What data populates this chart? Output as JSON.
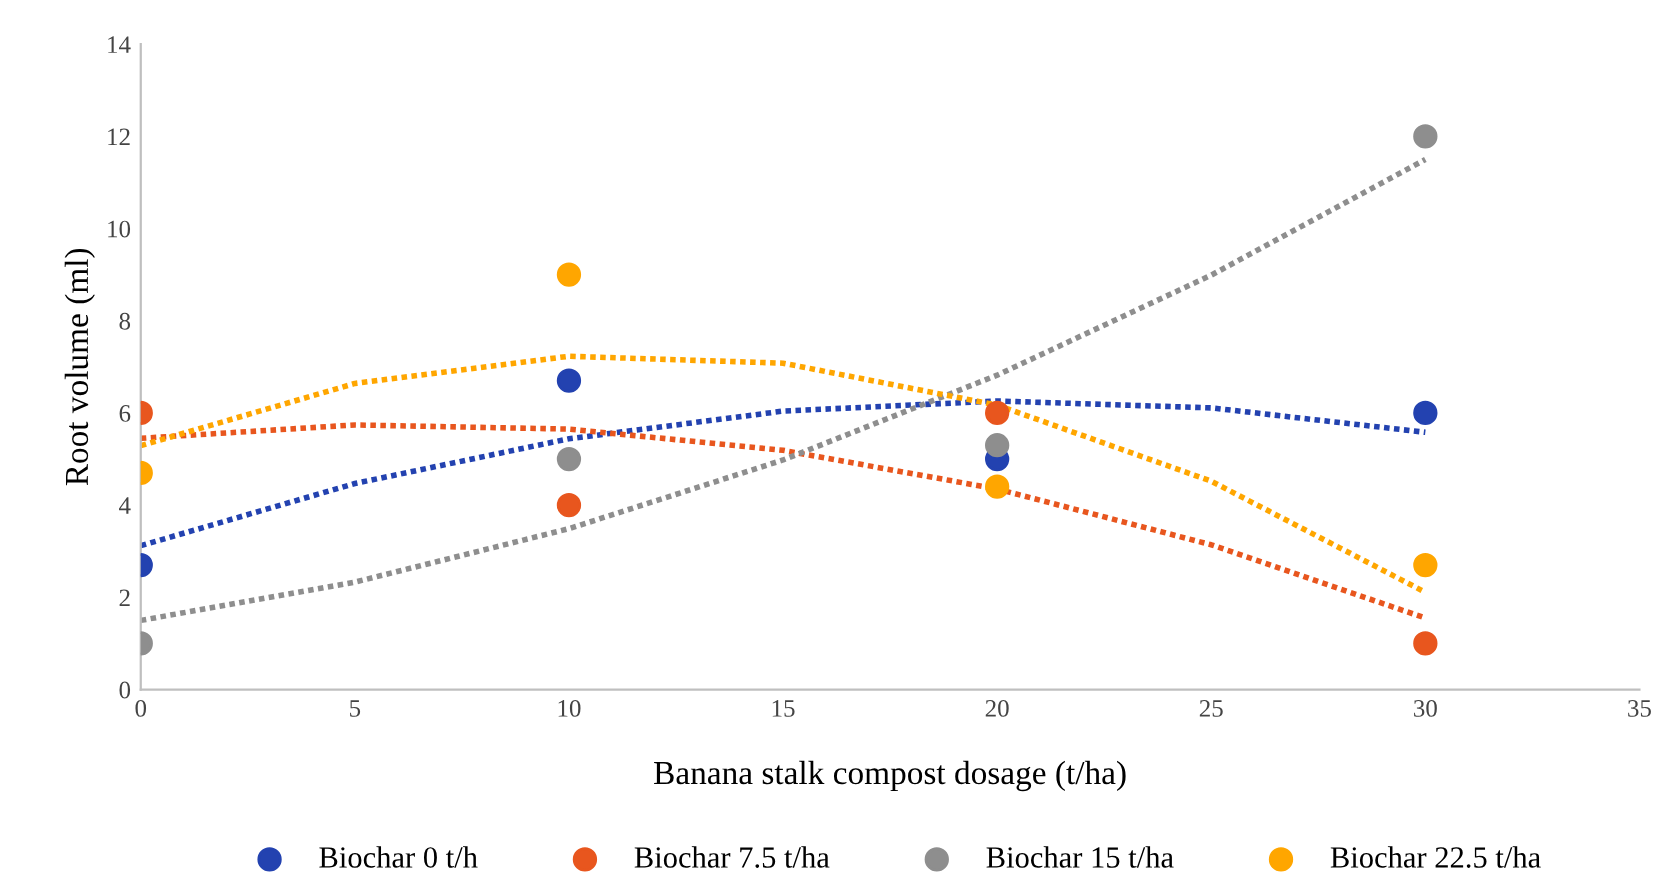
{
  "chart_data": {
    "type": "scatter",
    "xlabel": "Banana stalk compost dosage (t/ha)",
    "ylabel": "Root volume (ml)",
    "xlim": [
      0,
      35
    ],
    "ylim": [
      0,
      14
    ],
    "xticks": [
      0,
      5,
      10,
      15,
      20,
      25,
      30,
      35
    ],
    "yticks": [
      0,
      2,
      4,
      6,
      8,
      10,
      12,
      14
    ],
    "grid": false,
    "legend": "bottom",
    "series": [
      {
        "name": "Biochar 0 t/h",
        "color": "#2342b0",
        "x": [
          0,
          10,
          20,
          30
        ],
        "values": [
          2.7,
          6.7,
          5.0,
          6.0
        ],
        "marker": "circle"
      },
      {
        "name": "Biochar 7.5 t/ha",
        "color": "#e8561e",
        "x": [
          0,
          10,
          20,
          30
        ],
        "values": [
          6.0,
          4.0,
          6.0,
          1.0
        ],
        "marker": "circle"
      },
      {
        "name": "Biochar 15 t/ha",
        "color": "#8e8e8e",
        "x": [
          0,
          10,
          20,
          30
        ],
        "values": [
          1.0,
          5.0,
          5.3,
          12.0
        ],
        "marker": "circle"
      },
      {
        "name": "Biochar 22.5 t/ha",
        "color": "#ffa600",
        "x": [
          0,
          10,
          20,
          30
        ],
        "values": [
          4.7,
          9.0,
          4.4,
          2.7
        ],
        "marker": "circle"
      },
      {
        "type": "line",
        "line_style": "dotted",
        "color": "#2342b0",
        "x": [
          0,
          5,
          10,
          15,
          20,
          25,
          30
        ],
        "values": [
          3.12,
          4.47,
          5.44,
          6.04,
          6.26,
          6.11,
          5.58
        ]
      },
      {
        "type": "line",
        "line_style": "dotted",
        "color": "#e8561e",
        "x": [
          0,
          5,
          10,
          15,
          20,
          25,
          30
        ],
        "values": [
          5.45,
          5.74,
          5.65,
          5.19,
          4.35,
          3.14,
          1.55
        ]
      },
      {
        "type": "line",
        "line_style": "dotted",
        "color": "#8e8e8e",
        "x": [
          0,
          5,
          10,
          15,
          20,
          25,
          30
        ],
        "values": [
          1.5,
          2.33,
          3.49,
          4.98,
          6.82,
          8.99,
          11.5
        ]
      },
      {
        "type": "line",
        "line_style": "dotted",
        "color": "#ffa600",
        "x": [
          0,
          5,
          10,
          15,
          20,
          25,
          30
        ],
        "values": [
          5.29,
          6.64,
          7.23,
          7.08,
          6.17,
          4.52,
          2.11
        ]
      }
    ]
  }
}
